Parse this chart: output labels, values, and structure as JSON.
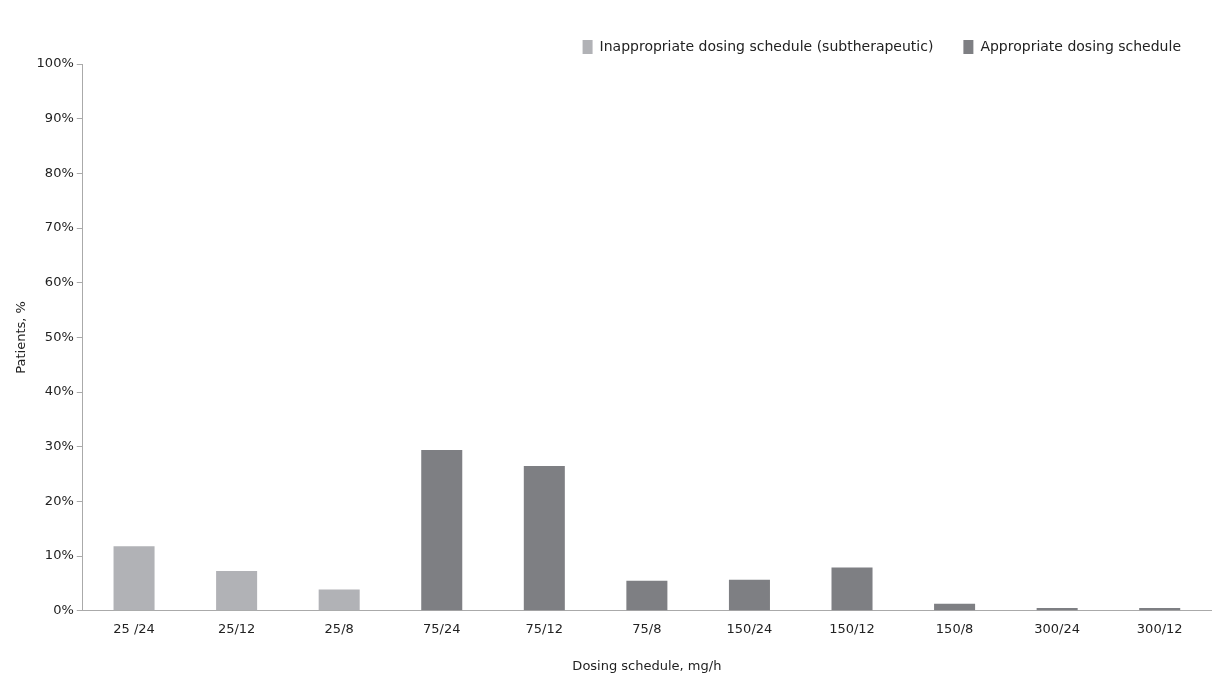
{
  "chart_data": {
    "type": "bar",
    "xlabel": "Dosing schedule, mg/h",
    "ylabel": "Patients, %",
    "categories": [
      "25 /24",
      "25/12",
      "25/8",
      "75/24",
      "75/12",
      "75/8",
      "150/24",
      "150/12",
      "150/8",
      "300/24",
      "300/12"
    ],
    "series": [
      {
        "name": "Inappropriate dosing schedule (subtherapeutic)",
        "color": "#b1b2b6",
        "values": [
          11.8,
          7.3,
          3.9,
          null,
          null,
          null,
          null,
          null,
          null,
          null,
          null
        ]
      },
      {
        "name": "Appropriate dosing schedule",
        "color": "#7e7f83",
        "values": [
          null,
          null,
          null,
          29.4,
          26.5,
          5.5,
          5.7,
          7.9,
          1.3,
          0.5,
          0.5
        ]
      }
    ],
    "ylim": [
      0,
      100
    ],
    "yticks": [
      {
        "value": 0,
        "label": "0%"
      },
      {
        "value": 10,
        "label": "10%"
      },
      {
        "value": 20,
        "label": "20%"
      },
      {
        "value": 30,
        "label": "30%"
      },
      {
        "value": 40,
        "label": "40%"
      },
      {
        "value": 50,
        "label": "50%"
      },
      {
        "value": 60,
        "label": "60%"
      },
      {
        "value": 70,
        "label": "70%"
      },
      {
        "value": 80,
        "label": "80%"
      },
      {
        "value": 90,
        "label": "90%"
      },
      {
        "value": 100,
        "label": "100%"
      }
    ],
    "grid": false,
    "legend": "top right"
  }
}
